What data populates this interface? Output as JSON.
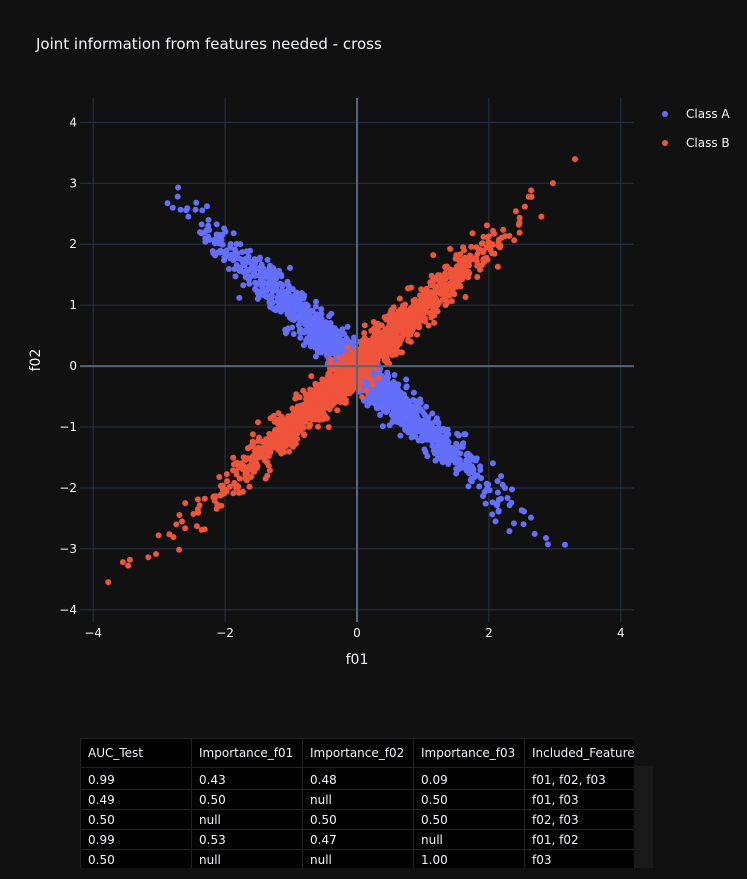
{
  "colors": {
    "class_a": "#636efa",
    "class_b": "#ef553b",
    "background": "#111111"
  },
  "chart_data": {
    "type": "scatter",
    "title": "Joint information from features needed - cross",
    "xlabel": "f01",
    "ylabel": "f02",
    "xlim": [
      -4.2,
      4.2
    ],
    "ylim": [
      -4.2,
      4.4
    ],
    "xticks": [
      -4,
      -2,
      0,
      2,
      4
    ],
    "yticks": [
      -4,
      -3,
      -2,
      -1,
      0,
      1,
      2,
      3,
      4
    ],
    "xtick_labels": [
      "−4",
      "−2",
      "0",
      "2",
      "4"
    ],
    "ytick_labels": [
      "−4",
      "−3",
      "−2",
      "−1",
      "0",
      "1",
      "2",
      "3",
      "4"
    ],
    "grid": true,
    "legend_position": "top-right",
    "series": [
      {
        "name": "Class A",
        "color": "#636efa",
        "relation": "f02 ≈ -f01",
        "x_range": [
          -3.5,
          3.8
        ],
        "spread": 0.11
      },
      {
        "name": "Class B",
        "color": "#ef553b",
        "relation": "f02 ≈ f01",
        "x_range": [
          -3.7,
          3.6
        ],
        "spread": 0.11
      }
    ]
  },
  "table": {
    "columns": [
      "AUC_Test",
      "Importance_f01",
      "Importance_f02",
      "Importance_f03",
      "Included_Features"
    ],
    "rows": [
      [
        "0.99",
        "0.43",
        "0.48",
        "0.09",
        "f01, f02, f03"
      ],
      [
        "0.49",
        "0.50",
        "null",
        "0.50",
        "f01, f03"
      ],
      [
        "0.50",
        "null",
        "0.50",
        "0.50",
        "f02, f03"
      ],
      [
        "0.99",
        "0.53",
        "0.47",
        "null",
        "f01, f02"
      ],
      [
        "0.50",
        "null",
        "null",
        "1.00",
        "f03"
      ]
    ]
  }
}
